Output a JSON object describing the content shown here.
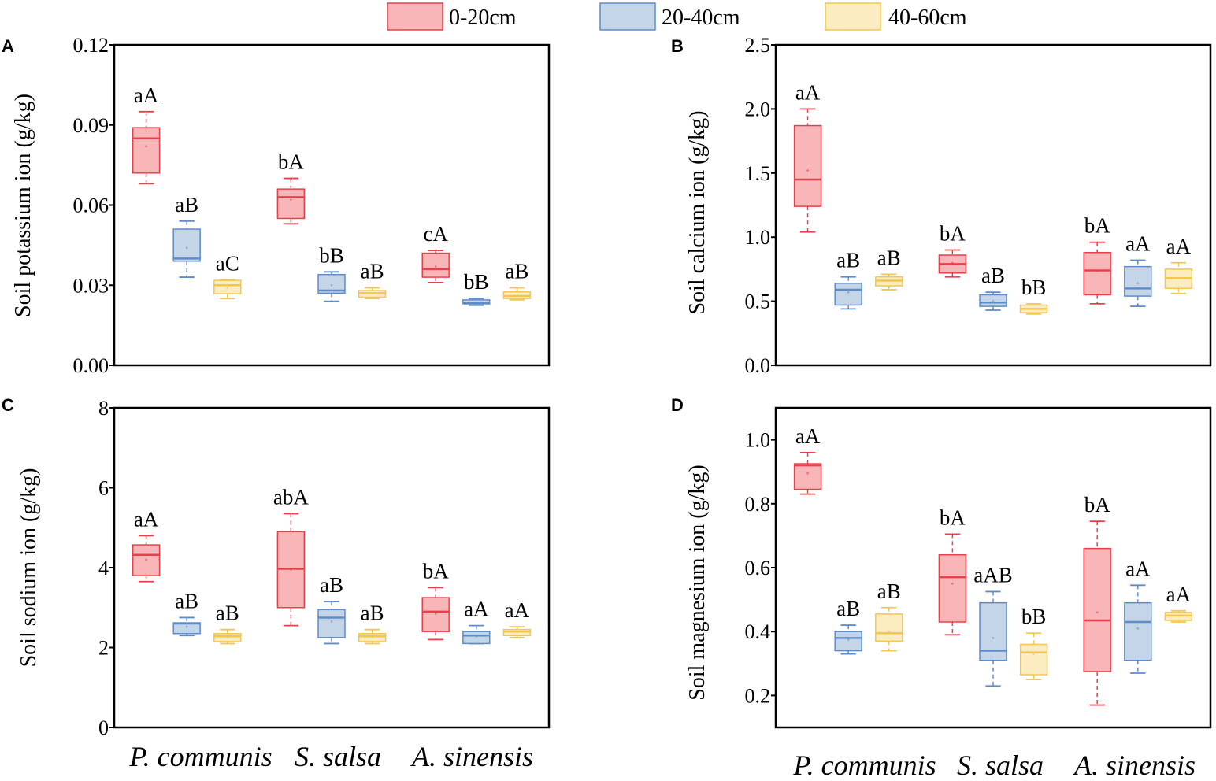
{
  "legend": {
    "items": [
      {
        "label": "0-20cm",
        "fill": "#F9B6B9",
        "stroke": "#E8404A"
      },
      {
        "label": "20-40cm",
        "fill": "#C4D5E8",
        "stroke": "#5E8CC8"
      },
      {
        "label": "40-60cm",
        "fill": "#FCECC2",
        "stroke": "#F1C84A"
      }
    ]
  },
  "x_categories": [
    "P. communis",
    "S. salsa",
    "A. sinensis"
  ],
  "chart_data": [
    {
      "type": "box",
      "panel": "A",
      "ylabel": "Soil potassium ion (g/kg)",
      "ylim": [
        0,
        0.12
      ],
      "yticks": [
        "0.00",
        "0.03",
        "0.06",
        "0.09",
        "0.12"
      ],
      "categories": [
        "P. communis",
        "S. salsa",
        "A. sinensis"
      ],
      "series": [
        {
          "name": "0-20cm",
          "boxes": [
            {
              "min": 0.068,
              "q1": 0.072,
              "median": 0.085,
              "q3": 0.089,
              "max": 0.095,
              "mean": 0.082,
              "label": "aA"
            },
            {
              "min": 0.053,
              "q1": 0.055,
              "median": 0.063,
              "q3": 0.066,
              "max": 0.07,
              "mean": 0.062,
              "label": "bA"
            },
            {
              "min": 0.031,
              "q1": 0.033,
              "median": 0.036,
              "q3": 0.042,
              "max": 0.043,
              "mean": 0.037,
              "label": "cA"
            }
          ]
        },
        {
          "name": "20-40cm",
          "boxes": [
            {
              "min": 0.033,
              "q1": 0.039,
              "median": 0.04,
              "q3": 0.051,
              "max": 0.054,
              "mean": 0.044,
              "label": "aB"
            },
            {
              "min": 0.024,
              "q1": 0.027,
              "median": 0.028,
              "q3": 0.034,
              "max": 0.035,
              "mean": 0.03,
              "label": "bB"
            },
            {
              "min": 0.0225,
              "q1": 0.023,
              "median": 0.0235,
              "q3": 0.0245,
              "max": 0.025,
              "mean": 0.0235,
              "label": "bB"
            }
          ]
        },
        {
          "name": "40-60cm",
          "boxes": [
            {
              "min": 0.025,
              "q1": 0.0268,
              "median": 0.03,
              "q3": 0.0318,
              "max": 0.032,
              "mean": 0.029,
              "label": "aC"
            },
            {
              "min": 0.025,
              "q1": 0.0255,
              "median": 0.027,
              "q3": 0.028,
              "max": 0.029,
              "mean": 0.027,
              "label": "aB"
            },
            {
              "min": 0.0245,
              "q1": 0.025,
              "median": 0.026,
              "q3": 0.0275,
              "max": 0.029,
              "mean": 0.026,
              "label": "aB"
            }
          ]
        }
      ]
    },
    {
      "type": "box",
      "panel": "B",
      "ylabel": "Soil calcium ion (g/kg)",
      "ylim": [
        0,
        2.5
      ],
      "yticks": [
        "0.0",
        "0.5",
        "1.0",
        "1.5",
        "2.0",
        "2.5"
      ],
      "categories": [
        "P. communis",
        "S. salsa",
        "A. sinensis"
      ],
      "series": [
        {
          "name": "0-20cm",
          "boxes": [
            {
              "min": 1.04,
              "q1": 1.24,
              "median": 1.45,
              "q3": 1.87,
              "max": 2.0,
              "mean": 1.52,
              "label": "aA"
            },
            {
              "min": 0.69,
              "q1": 0.72,
              "median": 0.79,
              "q3": 0.86,
              "max": 0.9,
              "mean": 0.8,
              "label": "bA"
            },
            {
              "min": 0.48,
              "q1": 0.55,
              "median": 0.74,
              "q3": 0.88,
              "max": 0.96,
              "mean": 0.74,
              "label": "bA"
            }
          ]
        },
        {
          "name": "20-40cm",
          "boxes": [
            {
              "min": 0.44,
              "q1": 0.47,
              "median": 0.59,
              "q3": 0.64,
              "max": 0.69,
              "mean": 0.57,
              "label": "aB"
            },
            {
              "min": 0.43,
              "q1": 0.46,
              "median": 0.49,
              "q3": 0.55,
              "max": 0.57,
              "mean": 0.5,
              "label": "aB"
            },
            {
              "min": 0.46,
              "q1": 0.54,
              "median": 0.6,
              "q3": 0.77,
              "max": 0.82,
              "mean": 0.64,
              "label": "aA"
            }
          ]
        },
        {
          "name": "40-60cm",
          "boxes": [
            {
              "min": 0.59,
              "q1": 0.62,
              "median": 0.66,
              "q3": 0.69,
              "max": 0.71,
              "mean": 0.66,
              "label": "aB"
            },
            {
              "min": 0.4,
              "q1": 0.41,
              "median": 0.44,
              "q3": 0.47,
              "max": 0.48,
              "mean": 0.44,
              "label": "bB"
            },
            {
              "min": 0.56,
              "q1": 0.6,
              "median": 0.68,
              "q3": 0.75,
              "max": 0.8,
              "mean": 0.68,
              "label": "aA"
            }
          ]
        }
      ]
    },
    {
      "type": "box",
      "panel": "C",
      "ylabel": "Soil sodium ion (g/kg)",
      "ylim": [
        0,
        8
      ],
      "yticks": [
        "0",
        "2",
        "4",
        "6",
        "8"
      ],
      "categories": [
        "P. communis",
        "S. salsa",
        "A. sinensis"
      ],
      "series": [
        {
          "name": "0-20cm",
          "boxes": [
            {
              "min": 3.65,
              "q1": 3.8,
              "median": 4.32,
              "q3": 4.57,
              "max": 4.8,
              "mean": 4.2,
              "label": "aA"
            },
            {
              "min": 2.55,
              "q1": 3.0,
              "median": 3.97,
              "q3": 4.9,
              "max": 5.35,
              "mean": 3.95,
              "label": "abA"
            },
            {
              "min": 2.2,
              "q1": 2.4,
              "median": 2.9,
              "q3": 3.25,
              "max": 3.5,
              "mean": 2.85,
              "label": "bA"
            }
          ]
        },
        {
          "name": "20-40cm",
          "boxes": [
            {
              "min": 2.3,
              "q1": 2.35,
              "median": 2.6,
              "q3": 2.62,
              "max": 2.75,
              "mean": 2.52,
              "label": "aB"
            },
            {
              "min": 2.1,
              "q1": 2.25,
              "median": 2.75,
              "q3": 2.95,
              "max": 3.15,
              "mean": 2.65,
              "label": "aB"
            },
            {
              "min": 2.1,
              "q1": 2.1,
              "median": 2.3,
              "q3": 2.4,
              "max": 2.55,
              "mean": 2.28,
              "label": "aA"
            }
          ]
        },
        {
          "name": "40-60cm",
          "boxes": [
            {
              "min": 2.1,
              "q1": 2.15,
              "median": 2.28,
              "q3": 2.35,
              "max": 2.45,
              "mean": 2.26,
              "label": "aB"
            },
            {
              "min": 2.1,
              "q1": 2.15,
              "median": 2.28,
              "q3": 2.35,
              "max": 2.45,
              "mean": 2.26,
              "label": "aB"
            },
            {
              "min": 2.25,
              "q1": 2.3,
              "median": 2.4,
              "q3": 2.45,
              "max": 2.52,
              "mean": 2.39,
              "label": "aA"
            }
          ]
        }
      ]
    },
    {
      "type": "box",
      "panel": "D",
      "ylabel": "Soil magnesium ion (g/kg)",
      "ylim": [
        0.1,
        1.1
      ],
      "yticks": [
        "0.2",
        "0.4",
        "0.6",
        "0.8",
        "1.0"
      ],
      "categories": [
        "P. communis",
        "S. salsa",
        "A. sinensis"
      ],
      "series": [
        {
          "name": "0-20cm",
          "boxes": [
            {
              "min": 0.83,
              "q1": 0.845,
              "median": 0.92,
              "q3": 0.925,
              "max": 0.96,
              "mean": 0.895,
              "label": "aA"
            },
            {
              "min": 0.39,
              "q1": 0.43,
              "median": 0.57,
              "q3": 0.64,
              "max": 0.705,
              "mean": 0.55,
              "label": "bA"
            },
            {
              "min": 0.17,
              "q1": 0.275,
              "median": 0.435,
              "q3": 0.66,
              "max": 0.745,
              "mean": 0.46,
              "label": "bA"
            }
          ]
        },
        {
          "name": "20-40cm",
          "boxes": [
            {
              "min": 0.33,
              "q1": 0.34,
              "median": 0.38,
              "q3": 0.4,
              "max": 0.42,
              "mean": 0.375,
              "label": "aB"
            },
            {
              "min": 0.23,
              "q1": 0.31,
              "median": 0.34,
              "q3": 0.49,
              "max": 0.525,
              "mean": 0.38,
              "label": "aAB"
            },
            {
              "min": 0.27,
              "q1": 0.31,
              "median": 0.43,
              "q3": 0.49,
              "max": 0.545,
              "mean": 0.41,
              "label": "aA"
            }
          ]
        },
        {
          "name": "40-60cm",
          "boxes": [
            {
              "min": 0.34,
              "q1": 0.37,
              "median": 0.395,
              "q3": 0.455,
              "max": 0.475,
              "mean": 0.4,
              "label": "aB"
            },
            {
              "min": 0.25,
              "q1": 0.265,
              "median": 0.335,
              "q3": 0.36,
              "max": 0.395,
              "mean": 0.33,
              "label": "bB"
            },
            {
              "min": 0.43,
              "q1": 0.435,
              "median": 0.45,
              "q3": 0.46,
              "max": 0.465,
              "mean": 0.45,
              "label": "aA"
            }
          ]
        }
      ]
    }
  ]
}
